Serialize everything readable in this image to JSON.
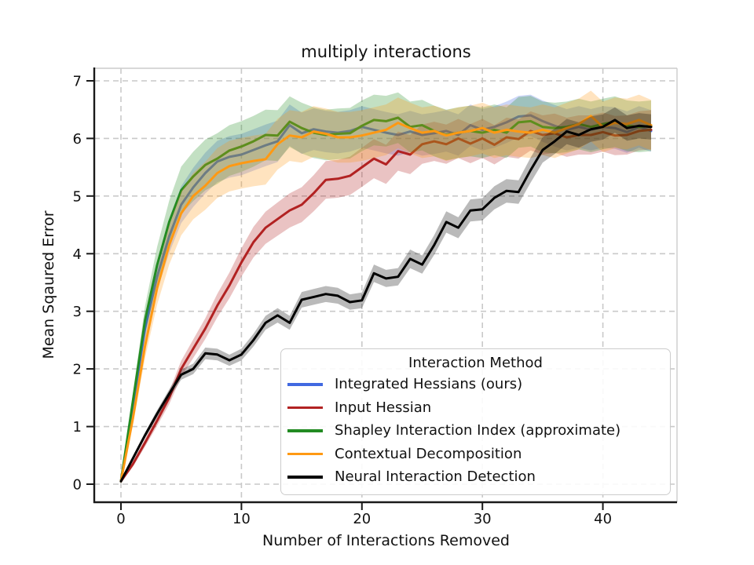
{
  "chart_data": {
    "type": "line",
    "title": "multiply interactions",
    "xlabel": "Number of Interactions Removed",
    "ylabel": "Mean Sqaured Error",
    "xlim": [
      -2.2,
      46.3
    ],
    "ylim": [
      -0.3,
      7.2
    ],
    "xticks": [
      0,
      10,
      20,
      30,
      40
    ],
    "yticks": [
      0,
      1,
      2,
      3,
      4,
      5,
      6,
      7
    ],
    "grid": "dashed",
    "legend": {
      "title": "Interaction Method",
      "position": "lower right"
    },
    "x": [
      0,
      1,
      2,
      3,
      4,
      5,
      6,
      7,
      8,
      9,
      10,
      11,
      12,
      13,
      14,
      15,
      16,
      17,
      18,
      19,
      20,
      21,
      22,
      23,
      24,
      25,
      26,
      27,
      28,
      29,
      30,
      31,
      32,
      33,
      34,
      35,
      36,
      37,
      38,
      39,
      40,
      41,
      42,
      43,
      44
    ],
    "series": [
      {
        "name": "Integrated Hessians (ours)",
        "color": "#4169E1",
        "band_halfwidth": 0.36,
        "values": [
          0.05,
          1.35,
          2.7,
          3.6,
          4.3,
          4.85,
          5.15,
          5.4,
          5.6,
          5.68,
          5.72,
          5.8,
          5.88,
          5.95,
          6.23,
          6.09,
          6.16,
          6.12,
          6.1,
          6.13,
          6.2,
          6.15,
          6.1,
          6.06,
          6.12,
          6.06,
          6.09,
          6.13,
          6.06,
          6.23,
          6.15,
          6.2,
          6.28,
          6.38,
          6.4,
          6.3,
          6.22,
          6.15,
          6.2,
          6.15,
          6.2,
          6.18,
          6.11,
          6.2,
          6.13
        ]
      },
      {
        "name": "Input Hessian",
        "color": "#B22222",
        "band_halfwidth": 0.34,
        "values": [
          0.05,
          0.35,
          0.72,
          1.1,
          1.5,
          2.0,
          2.35,
          2.7,
          3.1,
          3.45,
          3.85,
          4.2,
          4.45,
          4.6,
          4.75,
          4.85,
          5.05,
          5.28,
          5.3,
          5.35,
          5.5,
          5.65,
          5.55,
          5.78,
          5.72,
          5.9,
          5.95,
          5.9,
          6.0,
          5.91,
          6.0,
          5.89,
          6.02,
          5.99,
          6.13,
          6.06,
          6.09,
          6.02,
          6.06,
          6.06,
          6.11,
          6.05,
          6.06,
          6.13,
          6.15
        ]
      },
      {
        "name": "Shapley Interaction Index (approximate)",
        "color": "#228B22",
        "band_halfwidth": 0.44,
        "values": [
          0.05,
          1.45,
          2.85,
          3.8,
          4.55,
          5.1,
          5.34,
          5.54,
          5.65,
          5.79,
          5.86,
          5.95,
          6.06,
          6.05,
          6.29,
          6.18,
          6.1,
          6.06,
          6.08,
          6.09,
          6.22,
          6.32,
          6.3,
          6.36,
          6.2,
          6.23,
          6.13,
          6.06,
          6.1,
          6.13,
          6.1,
          6.15,
          6.1,
          6.28,
          6.3,
          6.2,
          6.18,
          6.2,
          6.25,
          6.2,
          6.25,
          6.29,
          6.22,
          6.2,
          6.22
        ]
      },
      {
        "name": "Contextual Decomposition",
        "color": "#FF9913",
        "band_halfwidth": 0.44,
        "values": [
          0.05,
          1.15,
          2.4,
          3.4,
          4.15,
          4.7,
          5.0,
          5.18,
          5.4,
          5.52,
          5.57,
          5.61,
          5.64,
          5.9,
          6.05,
          6.02,
          6.12,
          6.08,
          6.02,
          6.02,
          6.05,
          6.1,
          6.15,
          6.27,
          6.18,
          6.1,
          6.13,
          6.05,
          6.1,
          6.13,
          6.18,
          6.1,
          6.15,
          6.12,
          6.1,
          6.15,
          6.1,
          6.18,
          6.25,
          6.39,
          6.2,
          6.27,
          6.25,
          6.32,
          6.23
        ]
      },
      {
        "name": "Neural Interaction Detection",
        "color": "#000000",
        "band_halfwidth": 0.22,
        "values": [
          0.05,
          0.45,
          0.85,
          1.22,
          1.57,
          1.9,
          2.0,
          2.27,
          2.25,
          2.15,
          2.25,
          2.5,
          2.8,
          2.93,
          2.8,
          3.2,
          3.25,
          3.3,
          3.27,
          3.16,
          3.19,
          3.66,
          3.57,
          3.6,
          3.91,
          3.81,
          4.15,
          4.55,
          4.45,
          4.75,
          4.77,
          4.97,
          5.09,
          5.07,
          5.45,
          5.8,
          5.95,
          6.12,
          6.06,
          6.16,
          6.2,
          6.32,
          6.18,
          6.22,
          6.2
        ]
      }
    ]
  }
}
